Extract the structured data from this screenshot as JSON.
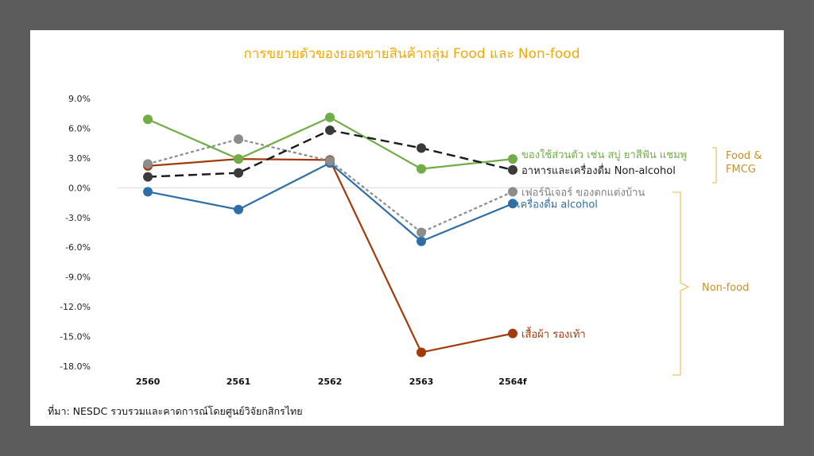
{
  "chart_data": {
    "type": "line",
    "title": "การขยายตัวของยอดขายสินค้ากลุ่ม Food และ Non-food",
    "x": [
      "2560",
      "2561",
      "2562",
      "2563",
      "2564f"
    ],
    "yticks": [
      "9.0%",
      "6.0%",
      "3.0%",
      "0.0%",
      "-3.0%",
      "-6.0%",
      "-9.0%",
      "-12.0%",
      "-15.0%",
      "-18.0%"
    ],
    "ylim": [
      -18,
      9
    ],
    "grid": "zero-line only",
    "series": [
      {
        "name": "ของใช้ส่วนตัว เช่น สบู่ ยาสีฟัน แชมพู",
        "color": "#70ad47",
        "style": "solid",
        "values": [
          6.9,
          2.9,
          7.1,
          1.9,
          2.9
        ]
      },
      {
        "name": "อาหารและเครื่องดื่ม Non-alcohol",
        "color": "#1a1a1a",
        "style": "dashed",
        "marker": "#3a3a3a",
        "values": [
          1.1,
          1.5,
          5.8,
          4.0,
          1.8
        ]
      },
      {
        "name": "เฟอร์นิเจอร์ ของตกแต่งบ้าน",
        "color": "#8c8c8c",
        "style": "dotted",
        "values": [
          2.4,
          4.9,
          2.7,
          -4.5,
          -0.4
        ]
      },
      {
        "name": "เครื่องดื่ม alcohol",
        "color": "#2e6ea6",
        "style": "solid",
        "values": [
          -0.4,
          -2.2,
          2.5,
          -5.4,
          -1.6
        ]
      },
      {
        "name": "เสื้อผ้า รองเท้า",
        "color": "#a33a0b",
        "style": "solid",
        "values": [
          2.2,
          2.9,
          2.8,
          -16.6,
          -14.7
        ]
      }
    ],
    "groups": [
      {
        "label_lines": [
          "Food &",
          "FMCG"
        ]
      },
      {
        "label_lines": [
          "Non-food"
        ]
      }
    ],
    "source": "ที่มา: NESDC รวบรวมและคาดการณ์โดยศูนย์วิจัยกสิกรไทย"
  }
}
